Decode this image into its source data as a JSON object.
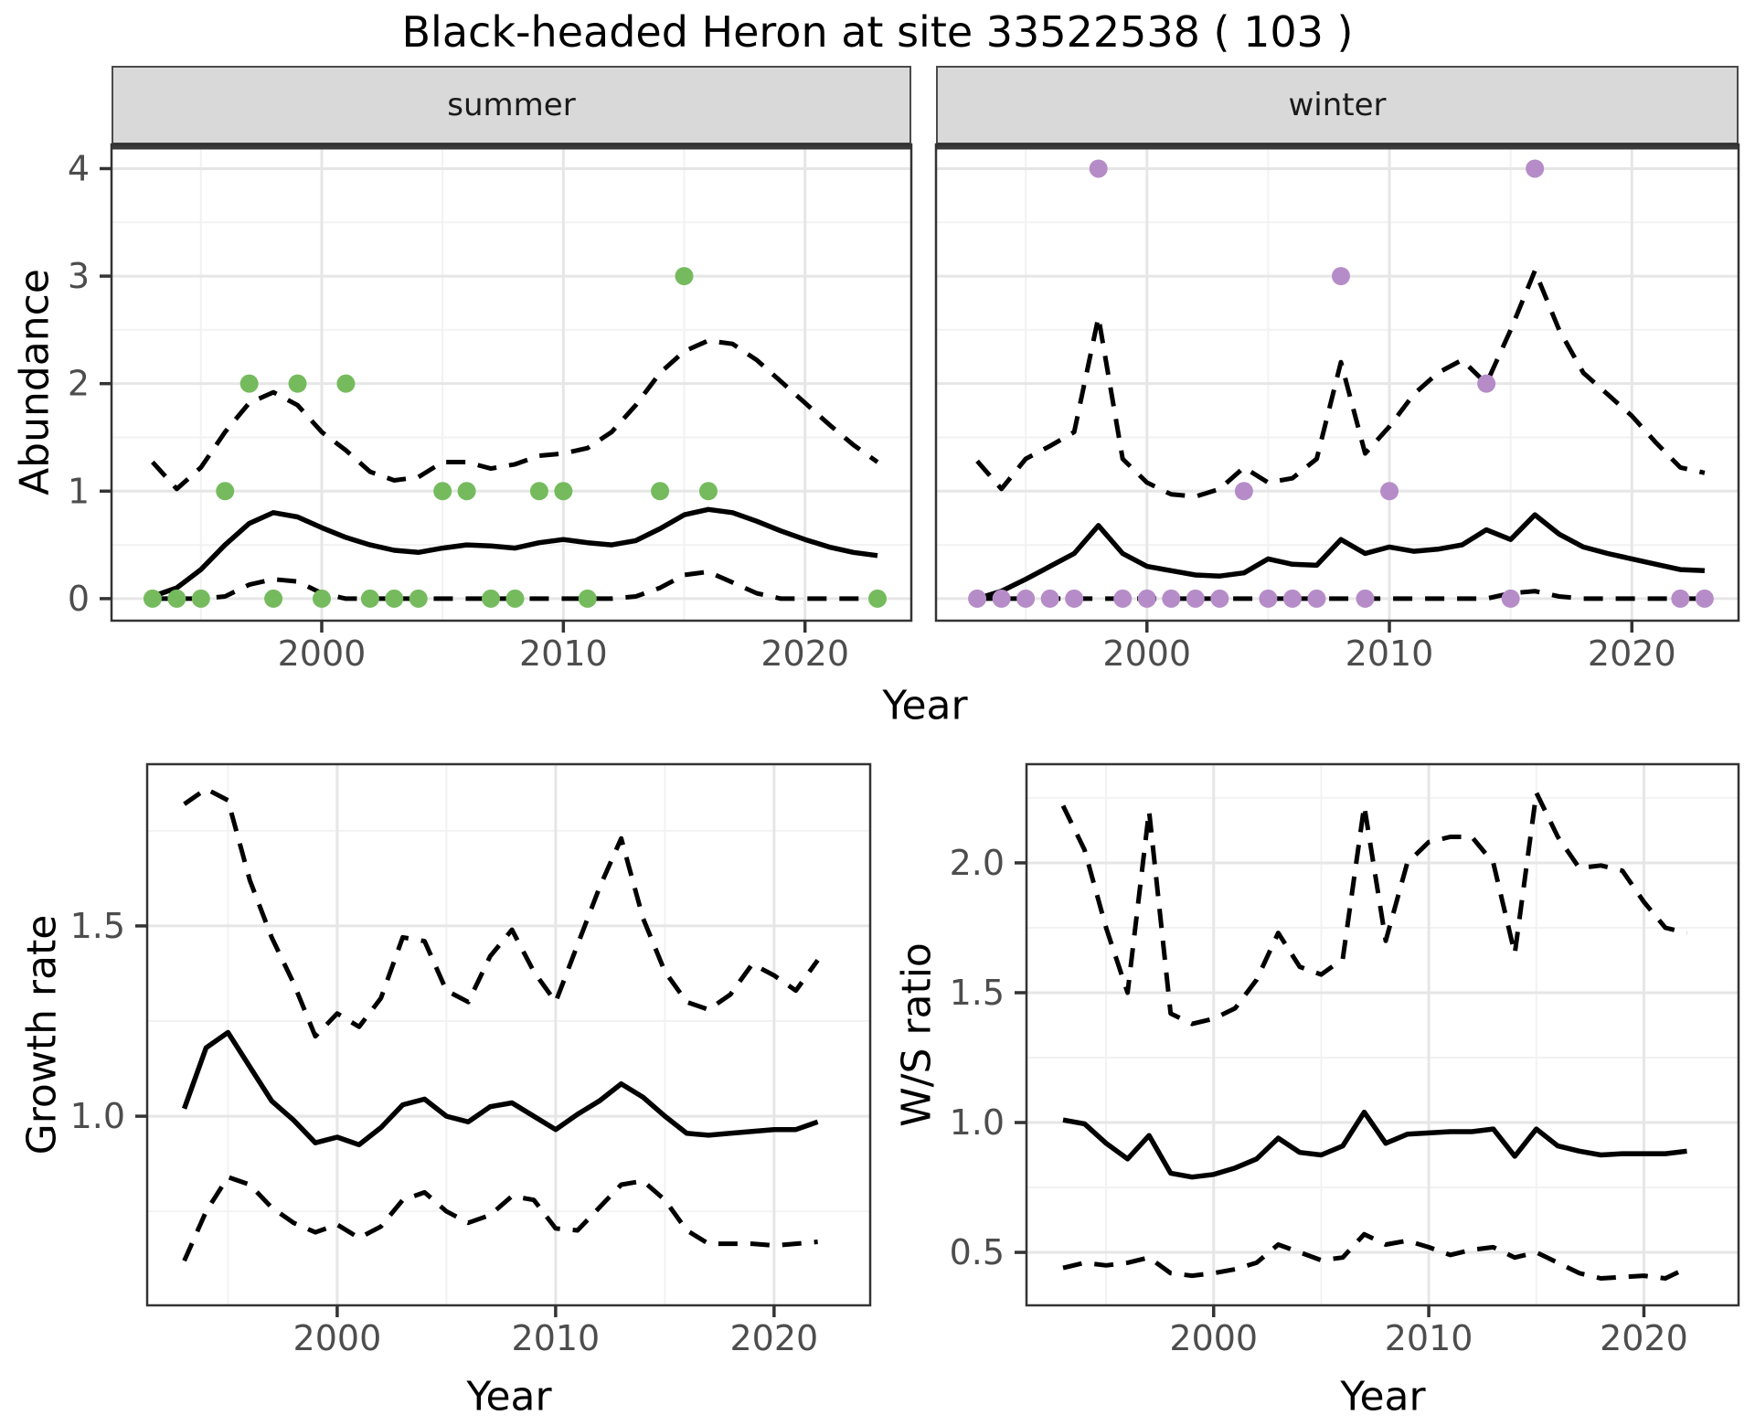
{
  "title": "Black-headed Heron at site 33522538 ( 103 )",
  "colors": {
    "summer_point": "#75BB5E",
    "winter_point": "#B58CC8",
    "line": "#000000",
    "grid_major": "#E6E6E6",
    "grid_minor": "#F2F2F2",
    "panel_border": "#333333",
    "tick_mark": "#333333",
    "tick_label": "#4D4D4D",
    "strip_background": "#D9D9D9",
    "background": "#FFFFFF"
  },
  "chart_data": [
    {
      "id": "abundance-summer",
      "type": "line",
      "facet": "summer",
      "ylabel": "Abundance",
      "xlabel": "Year",
      "xlim": [
        1991.3,
        2024.4
      ],
      "ylim": [
        -0.205,
        4.225
      ],
      "xticks": [
        2000,
        2010,
        2020
      ],
      "xtick_labels": [
        "2000",
        "2010",
        "2020"
      ],
      "xticks_minor": [
        1995,
        2005,
        2015
      ],
      "yticks": [
        0,
        1,
        2,
        3,
        4
      ],
      "ytick_labels": [
        "0",
        "1",
        "2",
        "3",
        "4"
      ],
      "yticks_minor": [
        0.5,
        1.5,
        2.5,
        3.5
      ],
      "grid": true,
      "legend": "none",
      "years": [
        1993,
        1994,
        1995,
        1996,
        1997,
        1998,
        1999,
        2000,
        2001,
        2002,
        2003,
        2004,
        2005,
        2006,
        2007,
        2008,
        2009,
        2010,
        2011,
        2012,
        2013,
        2014,
        2015,
        2016,
        2017,
        2018,
        2019,
        2020,
        2021,
        2022,
        2023
      ],
      "series": [
        {
          "name": "median",
          "style": "solid",
          "values": [
            0.02,
            0.1,
            0.27,
            0.5,
            0.7,
            0.8,
            0.76,
            0.66,
            0.57,
            0.5,
            0.45,
            0.43,
            0.47,
            0.5,
            0.49,
            0.47,
            0.52,
            0.55,
            0.52,
            0.5,
            0.54,
            0.65,
            0.78,
            0.83,
            0.8,
            0.72,
            0.63,
            0.55,
            0.48,
            0.43,
            0.4
          ]
        },
        {
          "name": "ci-upper",
          "style": "dashed",
          "values": [
            1.27,
            1.02,
            1.22,
            1.55,
            1.82,
            1.92,
            1.8,
            1.55,
            1.38,
            1.18,
            1.1,
            1.13,
            1.27,
            1.27,
            1.21,
            1.25,
            1.33,
            1.35,
            1.4,
            1.55,
            1.8,
            2.1,
            2.3,
            2.4,
            2.37,
            2.22,
            2.02,
            1.82,
            1.62,
            1.43,
            1.27
          ]
        },
        {
          "name": "ci-lower",
          "style": "dashed",
          "values": [
            0,
            0,
            0,
            0.02,
            0.13,
            0.18,
            0.16,
            0.05,
            0,
            0,
            0,
            0,
            0,
            0,
            0,
            0,
            0,
            0,
            0,
            0,
            0.02,
            0.1,
            0.22,
            0.25,
            0.15,
            0.05,
            0,
            0,
            0,
            0,
            0
          ]
        }
      ],
      "points": [
        [
          1993,
          0
        ],
        [
          1994,
          0
        ],
        [
          1995,
          0
        ],
        [
          1996,
          1
        ],
        [
          1997,
          2
        ],
        [
          1998,
          0
        ],
        [
          1999,
          2
        ],
        [
          2000,
          0
        ],
        [
          2001,
          2
        ],
        [
          2002,
          0
        ],
        [
          2003,
          0
        ],
        [
          2004,
          0
        ],
        [
          2005,
          1
        ],
        [
          2006,
          1
        ],
        [
          2007,
          0
        ],
        [
          2008,
          0
        ],
        [
          2009,
          1
        ],
        [
          2010,
          1
        ],
        [
          2011,
          0
        ],
        [
          2014,
          1
        ],
        [
          2015,
          3
        ],
        [
          2016,
          1
        ],
        [
          2023,
          0
        ]
      ],
      "point_color": "#75BB5E"
    },
    {
      "id": "abundance-winter",
      "type": "line",
      "facet": "winter",
      "ylabel": "Abundance",
      "xlabel": "Year",
      "xlim": [
        1991.3,
        2024.4
      ],
      "ylim": [
        -0.205,
        4.225
      ],
      "xticks": [
        2000,
        2010,
        2020
      ],
      "xtick_labels": [
        "2000",
        "2010",
        "2020"
      ],
      "xticks_minor": [
        1995,
        2005,
        2015
      ],
      "yticks": [],
      "ytick_labels": [],
      "yticks_minor": [
        0.5,
        1.5,
        2.5,
        3.5
      ],
      "yticks_grid": [
        0,
        1,
        2,
        3,
        4
      ],
      "grid": true,
      "legend": "none",
      "years": [
        1993,
        1994,
        1995,
        1996,
        1997,
        1998,
        1999,
        2000,
        2001,
        2002,
        2003,
        2004,
        2005,
        2006,
        2007,
        2008,
        2009,
        2010,
        2011,
        2012,
        2013,
        2014,
        2015,
        2016,
        2017,
        2018,
        2019,
        2020,
        2021,
        2022,
        2023
      ],
      "series": [
        {
          "name": "median",
          "style": "solid",
          "values": [
            0.0,
            0.07,
            0.18,
            0.3,
            0.42,
            0.68,
            0.42,
            0.3,
            0.26,
            0.22,
            0.21,
            0.24,
            0.37,
            0.32,
            0.31,
            0.55,
            0.42,
            0.48,
            0.44,
            0.46,
            0.5,
            0.64,
            0.55,
            0.78,
            0.6,
            0.48,
            0.42,
            0.37,
            0.32,
            0.27,
            0.26
          ]
        },
        {
          "name": "ci-upper",
          "style": "dashed",
          "values": [
            1.28,
            1.02,
            1.3,
            1.42,
            1.55,
            2.62,
            1.3,
            1.08,
            0.97,
            0.95,
            1.02,
            1.22,
            1.08,
            1.12,
            1.3,
            2.2,
            1.35,
            1.6,
            1.9,
            2.1,
            2.22,
            2.0,
            2.5,
            3.05,
            2.5,
            2.1,
            1.9,
            1.7,
            1.45,
            1.22,
            1.17
          ]
        },
        {
          "name": "ci-lower",
          "style": "dashed",
          "values": [
            0,
            0,
            0,
            0,
            0,
            0,
            0,
            0,
            0,
            0,
            0,
            0,
            0,
            0,
            0,
            0,
            0,
            0,
            0,
            0,
            0,
            0,
            0.05,
            0.07,
            0.02,
            0,
            0,
            0,
            0,
            0,
            0
          ]
        }
      ],
      "points": [
        [
          1993,
          0
        ],
        [
          1994,
          0
        ],
        [
          1995,
          0
        ],
        [
          1996,
          0
        ],
        [
          1997,
          0
        ],
        [
          1998,
          4
        ],
        [
          1999,
          0
        ],
        [
          2000,
          0
        ],
        [
          2001,
          0
        ],
        [
          2002,
          0
        ],
        [
          2003,
          0
        ],
        [
          2004,
          1
        ],
        [
          2005,
          0
        ],
        [
          2006,
          0
        ],
        [
          2007,
          0
        ],
        [
          2008,
          3
        ],
        [
          2009,
          0
        ],
        [
          2010,
          1
        ],
        [
          2014,
          2
        ],
        [
          2015,
          0
        ],
        [
          2016,
          4
        ],
        [
          2022,
          0
        ],
        [
          2023,
          0
        ]
      ],
      "point_color": "#B58CC8"
    },
    {
      "id": "growth-rate",
      "type": "line",
      "facet": "",
      "ylabel": "Growth rate",
      "xlabel": "Year",
      "xlim": [
        1991.3,
        2024.4
      ],
      "ylim": [
        0.503,
        1.925
      ],
      "xticks": [
        2000,
        2010,
        2020
      ],
      "xtick_labels": [
        "2000",
        "2010",
        "2020"
      ],
      "xticks_minor": [
        1995,
        2005,
        2015
      ],
      "yticks": [
        1.0,
        1.5
      ],
      "ytick_labels": [
        "1.0",
        "1.5"
      ],
      "yticks_minor": [
        0.75,
        1.25,
        1.75
      ],
      "grid": true,
      "legend": "none",
      "years": [
        1993,
        1994,
        1995,
        1996,
        1997,
        1998,
        1999,
        2000,
        2001,
        2002,
        2003,
        2004,
        2005,
        2006,
        2007,
        2008,
        2009,
        2010,
        2011,
        2012,
        2013,
        2014,
        2015,
        2016,
        2017,
        2018,
        2019,
        2020,
        2021,
        2022
      ],
      "series": [
        {
          "name": "median",
          "style": "solid",
          "values": [
            1.02,
            1.18,
            1.22,
            1.13,
            1.04,
            0.99,
            0.93,
            0.945,
            0.925,
            0.97,
            1.03,
            1.045,
            1.0,
            0.985,
            1.025,
            1.035,
            1.0,
            0.965,
            1.005,
            1.04,
            1.085,
            1.05,
            1.0,
            0.955,
            0.95,
            0.955,
            0.96,
            0.965,
            0.965,
            0.985
          ]
        },
        {
          "name": "ci-upper",
          "style": "dashed",
          "values": [
            1.82,
            1.86,
            1.83,
            1.62,
            1.47,
            1.35,
            1.21,
            1.27,
            1.235,
            1.31,
            1.47,
            1.46,
            1.33,
            1.3,
            1.42,
            1.49,
            1.38,
            1.3,
            1.45,
            1.6,
            1.73,
            1.52,
            1.38,
            1.3,
            1.28,
            1.32,
            1.4,
            1.37,
            1.33,
            1.41
          ]
        },
        {
          "name": "ci-lower",
          "style": "dashed",
          "values": [
            0.62,
            0.75,
            0.84,
            0.82,
            0.76,
            0.72,
            0.695,
            0.715,
            0.68,
            0.71,
            0.78,
            0.8,
            0.75,
            0.72,
            0.74,
            0.79,
            0.78,
            0.705,
            0.7,
            0.76,
            0.82,
            0.83,
            0.78,
            0.7,
            0.665,
            0.665,
            0.665,
            0.66,
            0.665,
            0.67
          ]
        }
      ],
      "points": [],
      "point_color": "#000000"
    },
    {
      "id": "ws-ratio",
      "type": "line",
      "facet": "",
      "ylabel": "W/S ratio",
      "xlabel": "Year",
      "xlim": [
        1991.3,
        2024.4
      ],
      "ylim": [
        0.296,
        2.38
      ],
      "xticks": [
        2000,
        2010,
        2020
      ],
      "xtick_labels": [
        "2000",
        "2010",
        "2020"
      ],
      "xticks_minor": [
        1995,
        2005,
        2015
      ],
      "yticks": [
        0.5,
        1.0,
        1.5,
        2.0
      ],
      "ytick_labels": [
        "0.5",
        "1.0",
        "1.5",
        "2.0"
      ],
      "yticks_minor": [
        0.75,
        1.25,
        1.75,
        2.25
      ],
      "grid": true,
      "legend": "none",
      "years": [
        1993,
        1994,
        1995,
        1996,
        1997,
        1998,
        1999,
        2000,
        2001,
        2002,
        2003,
        2004,
        2005,
        2006,
        2007,
        2008,
        2009,
        2010,
        2011,
        2012,
        2013,
        2014,
        2015,
        2016,
        2017,
        2018,
        2019,
        2020,
        2021,
        2022
      ],
      "series": [
        {
          "name": "median",
          "style": "solid",
          "values": [
            1.01,
            0.995,
            0.92,
            0.86,
            0.95,
            0.805,
            0.79,
            0.8,
            0.825,
            0.86,
            0.94,
            0.885,
            0.875,
            0.91,
            1.04,
            0.92,
            0.955,
            0.96,
            0.965,
            0.965,
            0.975,
            0.87,
            0.975,
            0.91,
            0.89,
            0.875,
            0.88,
            0.88,
            0.88,
            0.89
          ]
        },
        {
          "name": "ci-upper",
          "style": "dashed",
          "values": [
            2.22,
            2.05,
            1.75,
            1.5,
            2.2,
            1.42,
            1.38,
            1.4,
            1.44,
            1.55,
            1.73,
            1.6,
            1.57,
            1.63,
            2.22,
            1.7,
            2.0,
            2.08,
            2.1,
            2.1,
            2.0,
            1.65,
            2.27,
            2.1,
            1.98,
            1.99,
            1.97,
            1.85,
            1.75,
            1.73
          ]
        },
        {
          "name": "ci-lower",
          "style": "dashed",
          "values": [
            0.44,
            0.46,
            0.45,
            0.46,
            0.48,
            0.42,
            0.41,
            0.42,
            0.435,
            0.46,
            0.53,
            0.5,
            0.47,
            0.48,
            0.57,
            0.53,
            0.545,
            0.52,
            0.49,
            0.51,
            0.52,
            0.48,
            0.5,
            0.46,
            0.42,
            0.4,
            0.405,
            0.41,
            0.4,
            0.44
          ]
        }
      ],
      "points": [],
      "point_color": "#000000"
    }
  ]
}
